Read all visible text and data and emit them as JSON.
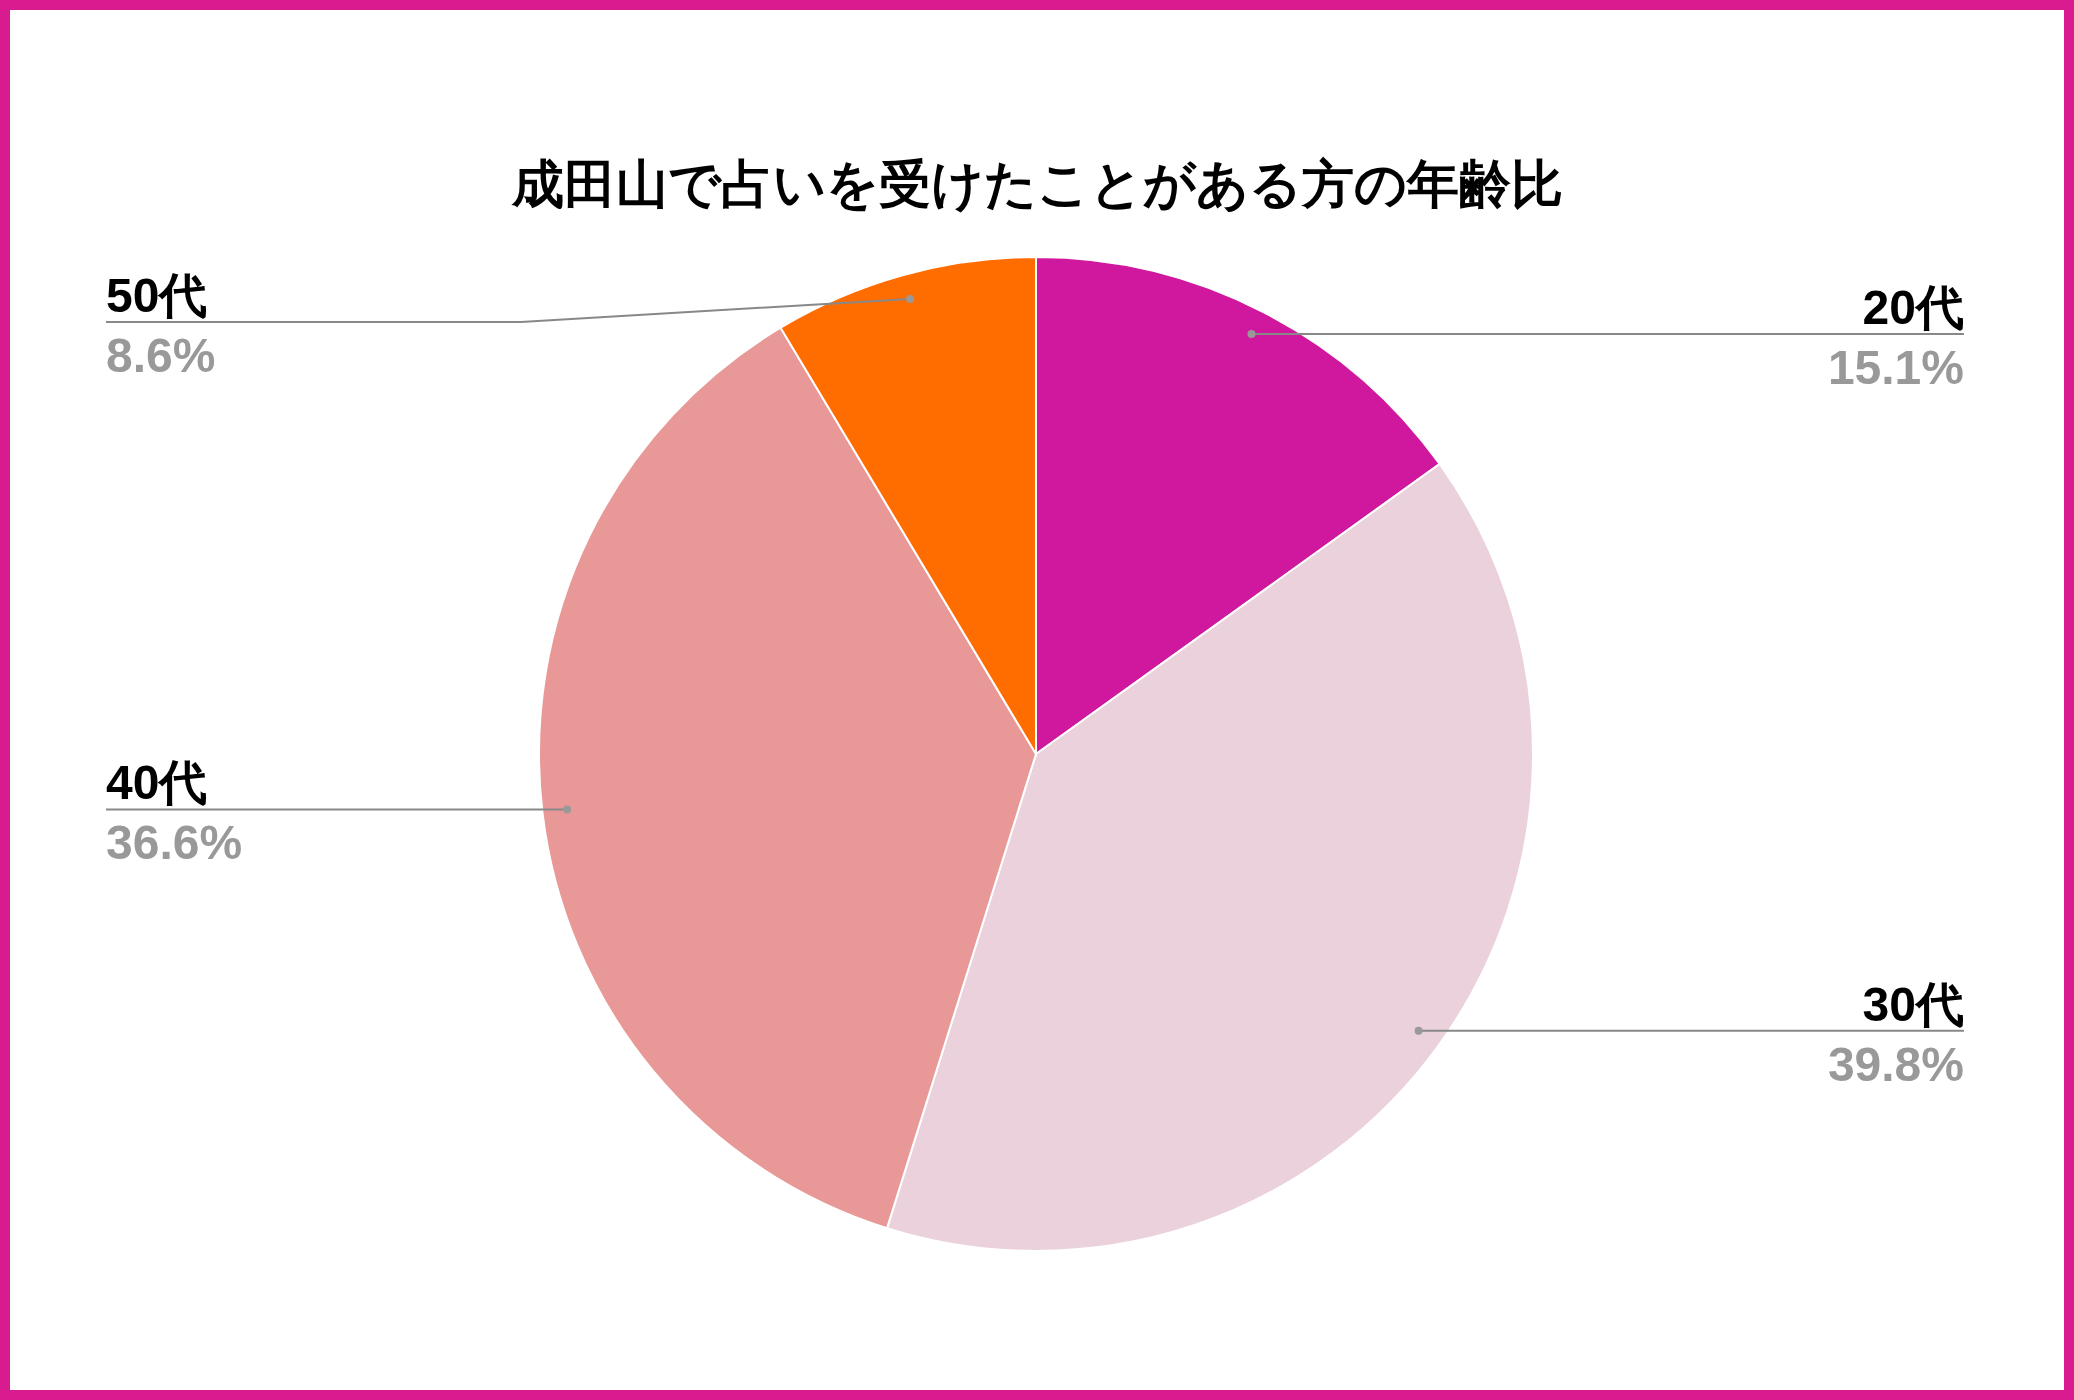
{
  "chart_data": {
    "type": "pie",
    "title": "成田山で占いを受けたことがある方の年齢比",
    "categories": [
      "20代",
      "30代",
      "40代",
      "50代"
    ],
    "values": [
      15.1,
      39.8,
      36.6,
      8.6
    ],
    "value_labels": [
      "15.1%",
      "39.8%",
      "36.6%",
      "8.6%"
    ],
    "colors": [
      "#d0189f",
      "#ead1dc",
      "#e89896",
      "#ff6d01"
    ]
  }
}
